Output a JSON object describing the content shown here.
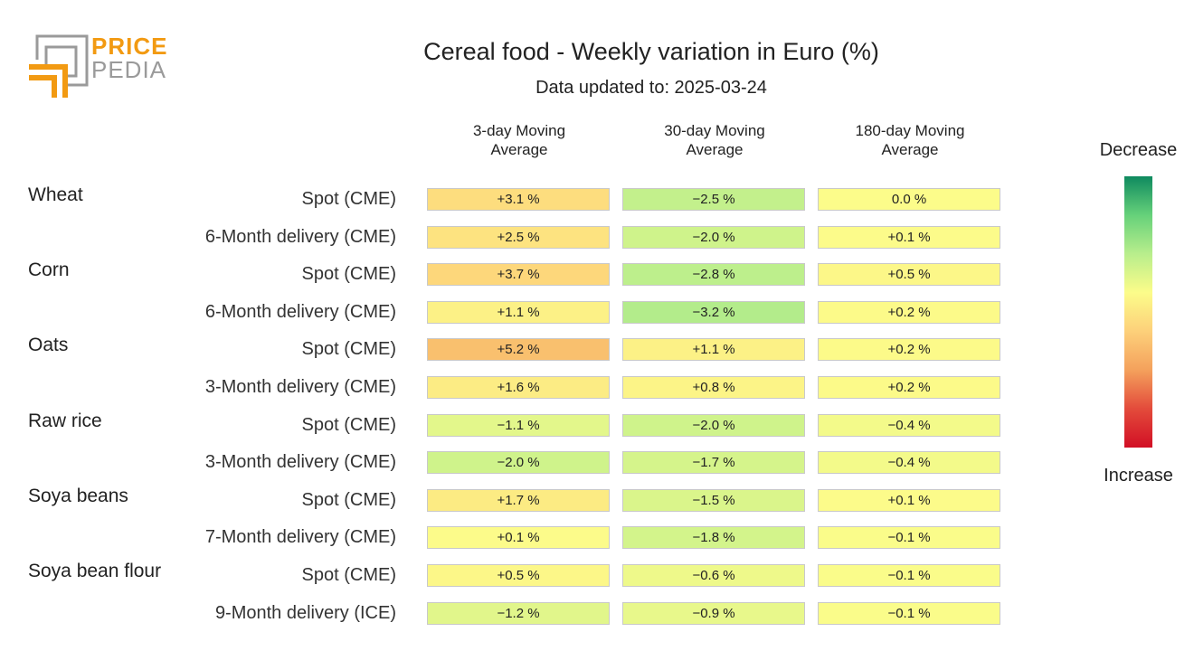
{
  "header": {
    "logo_top": "PRICE",
    "logo_bottom": "PEDIA",
    "title": "Cereal food - Weekly variation in Euro (%)",
    "subtitle": "Data updated to: 2025-03-24"
  },
  "legend": {
    "top_label": "Decrease",
    "bottom_label": "Increase",
    "colors": [
      "#0f8a5f",
      "#66d17a",
      "#b8ee8c",
      "#fcfc8a",
      "#fdd07a",
      "#f4a15c",
      "#e34b3b",
      "#d20f25"
    ]
  },
  "chart_data": {
    "type": "table",
    "title": "Cereal food - Weekly variation in Euro (%)",
    "subtitle": "Data updated to: 2025-03-24",
    "columns": [
      {
        "line1": "3-day Moving",
        "line2": "Average"
      },
      {
        "line1": "30-day Moving",
        "line2": "Average"
      },
      {
        "line1": "180-day Moving",
        "line2": "Average"
      }
    ],
    "products": [
      {
        "name": "Wheat",
        "row": 0
      },
      {
        "name": "Corn",
        "row": 2
      },
      {
        "name": "Oats",
        "row": 4
      },
      {
        "name": "Raw rice",
        "row": 6
      },
      {
        "name": "Soya beans",
        "row": 8
      },
      {
        "name": "Soya bean flour",
        "row": 10
      }
    ],
    "rows": [
      {
        "label": "Spot (CME)",
        "values": [
          3.1,
          -2.5,
          0.0
        ],
        "texts": [
          "+3.1 %",
          "−2.5 %",
          "0.0 %"
        ]
      },
      {
        "label": "6-Month delivery (CME)",
        "values": [
          2.5,
          -2.0,
          0.1
        ],
        "texts": [
          "+2.5 %",
          "−2.0 %",
          "+0.1 %"
        ]
      },
      {
        "label": "Spot (CME)",
        "values": [
          3.7,
          -2.8,
          0.5
        ],
        "texts": [
          "+3.7 %",
          "−2.8 %",
          "+0.5 %"
        ]
      },
      {
        "label": "6-Month delivery (CME)",
        "values": [
          1.1,
          -3.2,
          0.2
        ],
        "texts": [
          "+1.1 %",
          "−3.2 %",
          "+0.2 %"
        ]
      },
      {
        "label": "Spot (CME)",
        "values": [
          5.2,
          1.1,
          0.2
        ],
        "texts": [
          "+5.2 %",
          "+1.1 %",
          "+0.2 %"
        ]
      },
      {
        "label": "3-Month delivery (CME)",
        "values": [
          1.6,
          0.8,
          0.2
        ],
        "texts": [
          "+1.6 %",
          "+0.8 %",
          "+0.2 %"
        ]
      },
      {
        "label": "Spot (CME)",
        "values": [
          -1.1,
          -2.0,
          -0.4
        ],
        "texts": [
          "−1.1 %",
          "−2.0 %",
          "−0.4 %"
        ]
      },
      {
        "label": "3-Month delivery (CME)",
        "values": [
          -2.0,
          -1.7,
          -0.4
        ],
        "texts": [
          "−2.0 %",
          "−1.7 %",
          "−0.4 %"
        ]
      },
      {
        "label": "Spot (CME)",
        "values": [
          1.7,
          -1.5,
          0.1
        ],
        "texts": [
          "+1.7 %",
          "−1.5 %",
          "+0.1 %"
        ]
      },
      {
        "label": "7-Month delivery (CME)",
        "values": [
          0.1,
          -1.8,
          -0.1
        ],
        "texts": [
          "+0.1 %",
          "−1.8 %",
          "−0.1 %"
        ]
      },
      {
        "label": "Spot (CME)",
        "values": [
          0.5,
          -0.6,
          -0.1
        ],
        "texts": [
          "+0.5 %",
          "−0.6 %",
          "−0.1 %"
        ]
      },
      {
        "label": "9-Month delivery (ICE)",
        "values": [
          -1.2,
          -0.9,
          -0.1
        ],
        "texts": [
          "−1.2 %",
          "−0.9 %",
          "−0.1 %"
        ]
      }
    ]
  }
}
